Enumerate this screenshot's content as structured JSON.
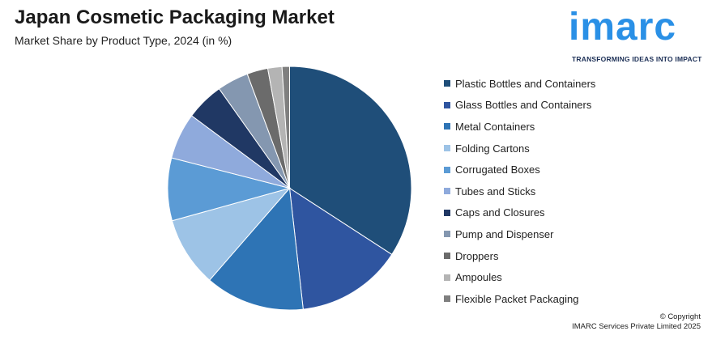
{
  "header": {
    "title": "Japan Cosmetic Packaging Market",
    "subtitle": "Market Share by Product Type, 2024 (in %)"
  },
  "logo": {
    "word": "imarc",
    "tagline": "TRANSFORMING IDEAS INTO IMPACT",
    "color": "#2a90e6"
  },
  "chart_data": {
    "type": "pie",
    "title": "Japan Cosmetic Packaging Market",
    "subtitle": "Market Share by Product Type, 2024 (in %)",
    "legend_position": "right",
    "slices": [
      {
        "label": "Plastic Bottles and Containers",
        "value": 34.5,
        "color": "#1f4e79"
      },
      {
        "label": "Glass Bottles and Containers",
        "value": 14.2,
        "color": "#2f55a0"
      },
      {
        "label": "Metal Containers",
        "value": 13.3,
        "color": "#2e74b5"
      },
      {
        "label": "Folding Cartons",
        "value": 9.4,
        "color": "#9dc3e6"
      },
      {
        "label": "Corrugated Boxes",
        "value": 8.4,
        "color": "#5b9bd5"
      },
      {
        "label": "Tubes and Sticks",
        "value": 6.2,
        "color": "#8faadc"
      },
      {
        "label": "Caps and Closures",
        "value": 5.1,
        "color": "#203864"
      },
      {
        "label": "Pump and Dispenser",
        "value": 4.2,
        "color": "#8497b0"
      },
      {
        "label": "Droppers",
        "value": 2.8,
        "color": "#6b6b6b"
      },
      {
        "label": "Ampoules",
        "value": 1.9,
        "color": "#b4b4b4"
      },
      {
        "label": "Flexible Packet Packaging",
        "value": 1.0,
        "color": "#7f7f7f"
      }
    ]
  },
  "footer": {
    "copyright_line1": "© Copyright",
    "copyright_line2": "IMARC Services Private Limited 2025"
  }
}
